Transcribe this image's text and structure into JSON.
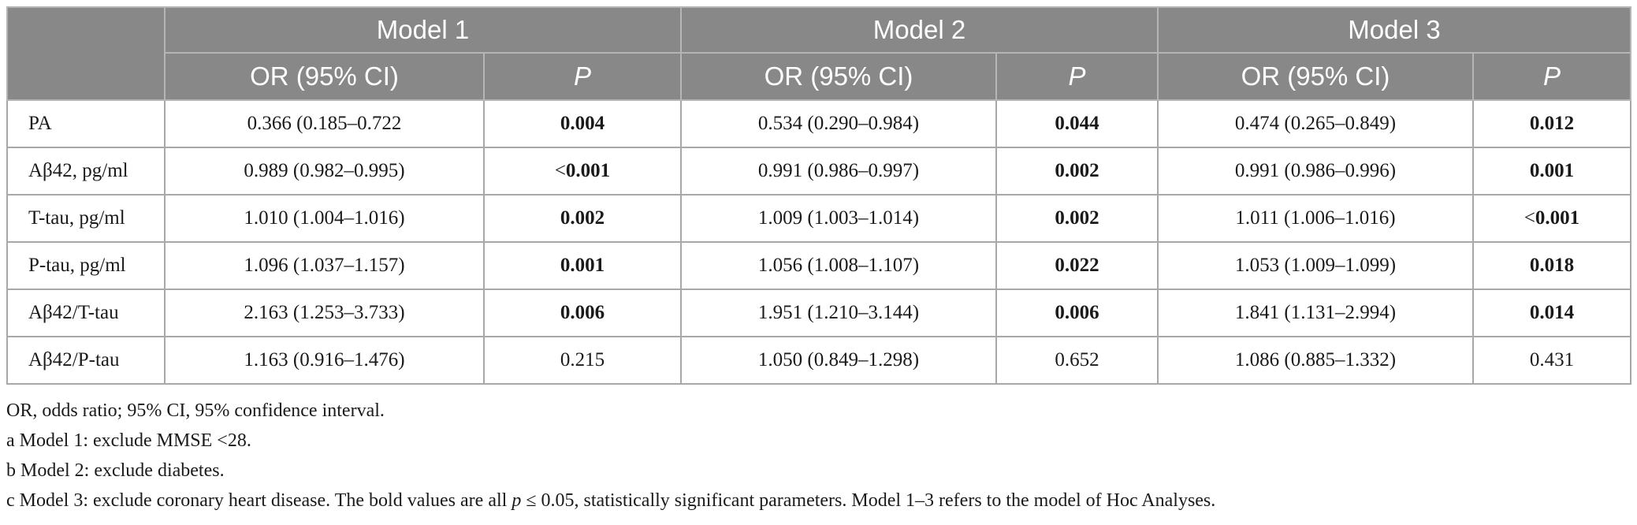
{
  "table": {
    "model_headers": [
      "Model 1",
      "Model 2",
      "Model 3"
    ],
    "sub_headers": {
      "or": "OR (95% CI)",
      "p": "P"
    },
    "rows": [
      {
        "label": "PA",
        "cells": [
          {
            "or": "0.366 (0.185–0.722",
            "p_prefix": "",
            "p": "0.004",
            "bold": true
          },
          {
            "or": "0.534 (0.290–0.984)",
            "p_prefix": "",
            "p": "0.044",
            "bold": true
          },
          {
            "or": "0.474 (0.265–0.849)",
            "p_prefix": "",
            "p": "0.012",
            "bold": true
          }
        ]
      },
      {
        "label": "Aβ42, pg/ml",
        "cells": [
          {
            "or": "0.989 (0.982–0.995)",
            "p_prefix": "<",
            "p": "0.001",
            "bold": true
          },
          {
            "or": "0.991 (0.986–0.997)",
            "p_prefix": "",
            "p": "0.002",
            "bold": true
          },
          {
            "or": "0.991 (0.986–0.996)",
            "p_prefix": "",
            "p": "0.001",
            "bold": true
          }
        ]
      },
      {
        "label": "T-tau, pg/ml",
        "cells": [
          {
            "or": "1.010 (1.004–1.016)",
            "p_prefix": "",
            "p": "0.002",
            "bold": true
          },
          {
            "or": "1.009 (1.003–1.014)",
            "p_prefix": "",
            "p": "0.002",
            "bold": true
          },
          {
            "or": "1.011 (1.006–1.016)",
            "p_prefix": "<",
            "p": "0.001",
            "bold": true
          }
        ]
      },
      {
        "label": "P-tau, pg/ml",
        "cells": [
          {
            "or": "1.096 (1.037–1.157)",
            "p_prefix": "",
            "p": "0.001",
            "bold": true
          },
          {
            "or": "1.056 (1.008–1.107)",
            "p_prefix": "",
            "p": "0.022",
            "bold": true
          },
          {
            "or": "1.053 (1.009–1.099)",
            "p_prefix": "",
            "p": "0.018",
            "bold": true
          }
        ]
      },
      {
        "label": "Aβ42/T-tau",
        "cells": [
          {
            "or": "2.163 (1.253–3.733)",
            "p_prefix": "",
            "p": "0.006",
            "bold": true
          },
          {
            "or": "1.951 (1.210–3.144)",
            "p_prefix": "",
            "p": "0.006",
            "bold": true
          },
          {
            "or": "1.841 (1.131–2.994)",
            "p_prefix": "",
            "p": "0.014",
            "bold": true
          }
        ]
      },
      {
        "label": "Aβ42/P-tau",
        "cells": [
          {
            "or": "1.163 (0.916–1.476)",
            "p_prefix": "",
            "p": "0.215",
            "bold": false
          },
          {
            "or": "1.050 (0.849–1.298)",
            "p_prefix": "",
            "p": "0.652",
            "bold": false
          },
          {
            "or": "1.086 (0.885–1.332)",
            "p_prefix": "",
            "p": "0.431",
            "bold": false
          }
        ]
      }
    ]
  },
  "notes": {
    "abbrev": "OR, odds ratio; 95% CI, 95% confidence interval.",
    "a": "a Model 1: exclude MMSE <28.",
    "b": "b Model 2: exclude diabetes.",
    "c_before": "c Model 3: exclude coronary heart disease. The bold values are all ",
    "c_p": "p",
    "c_after": " ≤ 0.05, statistically significant parameters. Model 1–3 refers to the model of Hoc Analyses."
  },
  "colors": {
    "header_bg": "#888888",
    "header_text": "#ffffff",
    "border": "#a8a8a8"
  }
}
